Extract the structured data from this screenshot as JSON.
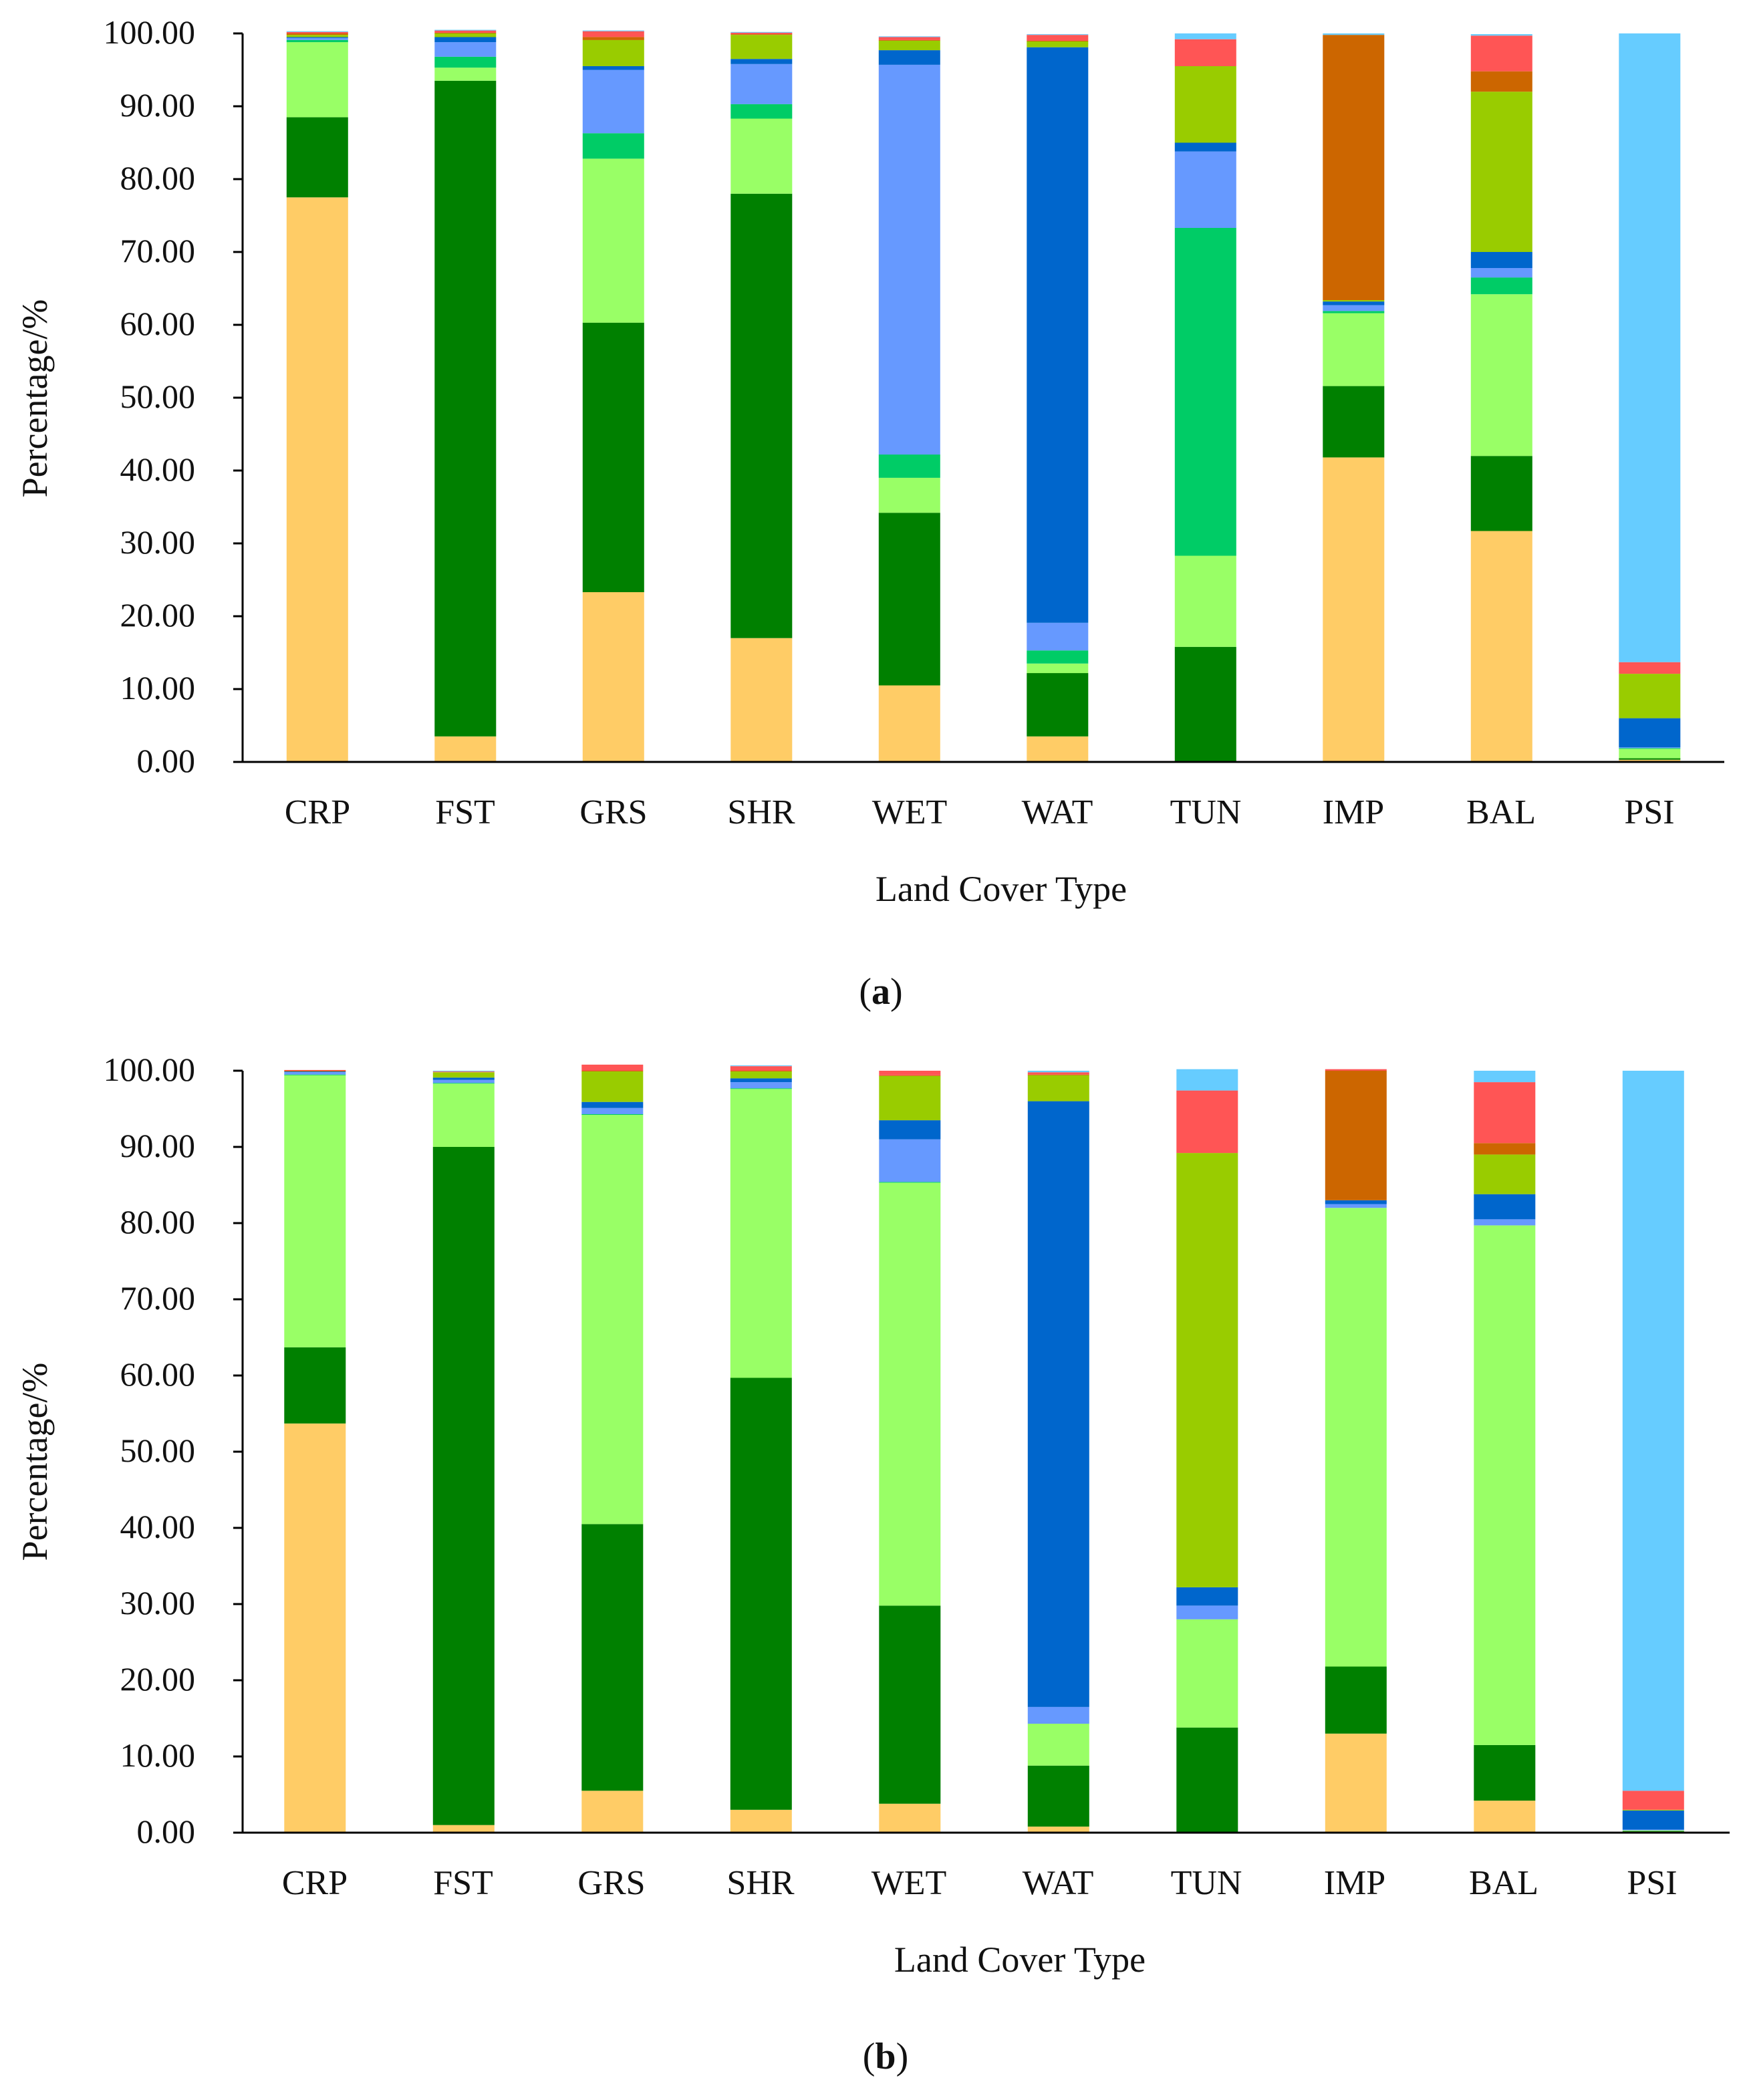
{
  "colors": {
    "CRP": "#FFCC66",
    "FST": "#008000",
    "GRS": "#99FF66",
    "SHR": "#00CC66",
    "WET": "#6699FF",
    "WAT": "#0066CC",
    "TUN": "#99CC00",
    "IMP": "#CC6600",
    "BAL": "#FF5555",
    "PSI": "#66CCFF"
  },
  "stack_order": [
    "CRP",
    "FST",
    "GRS",
    "SHR",
    "WET",
    "WAT",
    "TUN",
    "IMP",
    "BAL",
    "PSI"
  ],
  "chart_data": [
    {
      "type": "bar",
      "stacked": true,
      "panel_label": "a",
      "categories": [
        "CRP",
        "FST",
        "GRS",
        "SHR",
        "WET",
        "WAT",
        "TUN",
        "IMP",
        "BAL",
        "PSI"
      ],
      "xlabel": "Land Cover Type",
      "ylabel": "Percentage/%",
      "ylim": [
        0,
        100
      ],
      "yticks": [
        "0.00",
        "10.00",
        "20.00",
        "30.00",
        "40.00",
        "50.00",
        "60.00",
        "70.00",
        "80.00",
        "90.00",
        "100.00"
      ],
      "series": [
        {
          "name": "CRP",
          "values": [
            77.5,
            3.5,
            23.3,
            17.0,
            10.5,
            3.5,
            0.0,
            41.8,
            31.7,
            0.3
          ]
        },
        {
          "name": "FST",
          "values": [
            11.0,
            90.0,
            37.0,
            61.0,
            23.7,
            8.7,
            15.8,
            9.8,
            10.3,
            0.2
          ]
        },
        {
          "name": "GRS",
          "values": [
            10.3,
            1.8,
            22.5,
            10.3,
            4.8,
            1.3,
            12.5,
            10.0,
            22.2,
            1.3
          ]
        },
        {
          "name": "SHR",
          "values": [
            0.3,
            1.5,
            3.5,
            2.0,
            3.2,
            1.8,
            45.0,
            0.3,
            2.3,
            0.1
          ]
        },
        {
          "name": "WET",
          "values": [
            0.3,
            2.0,
            8.7,
            5.5,
            53.5,
            3.8,
            10.5,
            0.8,
            1.3,
            0.1
          ]
        },
        {
          "name": "WAT",
          "values": [
            0.1,
            0.7,
            0.5,
            0.7,
            2.0,
            79.0,
            1.2,
            0.5,
            2.2,
            4.0
          ]
        },
        {
          "name": "TUN",
          "values": [
            0.3,
            0.5,
            3.6,
            3.3,
            1.3,
            0.8,
            10.5,
            0.2,
            22.0,
            6.1
          ]
        },
        {
          "name": "IMP",
          "values": [
            0.2,
            0.1,
            0.4,
            0.1,
            0.1,
            0.1,
            0.0,
            36.4,
            2.8,
            0.0
          ]
        },
        {
          "name": "BAL",
          "values": [
            0.2,
            0.3,
            0.8,
            0.2,
            0.4,
            0.8,
            3.7,
            0.0,
            4.9,
            1.6
          ]
        },
        {
          "name": "PSI",
          "values": [
            0.1,
            0.1,
            0.1,
            0.1,
            0.1,
            0.1,
            0.8,
            0.2,
            0.2,
            86.3
          ]
        }
      ]
    },
    {
      "type": "bar",
      "stacked": true,
      "panel_label": "b",
      "categories": [
        "CRP",
        "FST",
        "GRS",
        "SHR",
        "WET",
        "WAT",
        "TUN",
        "IMP",
        "BAL",
        "PSI"
      ],
      "xlabel": "Land Cover Type",
      "ylabel": "Percentage/%",
      "ylim": [
        0,
        100
      ],
      "yticks": [
        "0.00",
        "10.00",
        "20.00",
        "30.00",
        "40.00",
        "50.00",
        "60.00",
        "70.00",
        "80.00",
        "90.00",
        "100.00"
      ],
      "series": [
        {
          "name": "CRP",
          "values": [
            53.7,
            1.0,
            5.5,
            3.0,
            3.8,
            0.8,
            0.0,
            13.0,
            4.2,
            0.1
          ]
        },
        {
          "name": "FST",
          "values": [
            10.0,
            89.0,
            35.0,
            56.7,
            26.0,
            8.0,
            13.8,
            8.8,
            7.3,
            0.1
          ]
        },
        {
          "name": "GRS",
          "values": [
            35.7,
            8.3,
            53.7,
            37.9,
            55.5,
            5.5,
            14.2,
            60.2,
            68.2,
            0.1
          ]
        },
        {
          "name": "SHR",
          "values": [
            0.1,
            0.1,
            0.1,
            0.1,
            0.1,
            0.0,
            0.0,
            0.0,
            0.0,
            0.0
          ]
        },
        {
          "name": "WET",
          "values": [
            0.3,
            0.4,
            0.8,
            0.8,
            5.6,
            2.2,
            1.8,
            0.5,
            0.8,
            0.1
          ]
        },
        {
          "name": "WAT",
          "values": [
            0.1,
            0.3,
            0.8,
            0.5,
            2.5,
            79.5,
            2.4,
            0.5,
            3.3,
            2.5
          ]
        },
        {
          "name": "TUN",
          "values": [
            0.0,
            0.7,
            4.0,
            0.9,
            5.8,
            3.4,
            57.0,
            0.0,
            5.2,
            0.1
          ]
        },
        {
          "name": "IMP",
          "values": [
            0.1,
            0.0,
            0.1,
            0.1,
            0.1,
            0.1,
            0.0,
            17.0,
            1.5,
            0.0
          ]
        },
        {
          "name": "BAL",
          "values": [
            0.1,
            0.1,
            0.8,
            0.6,
            0.6,
            0.3,
            8.2,
            0.2,
            8.0,
            2.5
          ]
        },
        {
          "name": "PSI",
          "values": [
            0.0,
            0.1,
            0.0,
            0.1,
            0.0,
            0.2,
            2.8,
            0.0,
            1.5,
            94.5
          ]
        }
      ]
    }
  ]
}
